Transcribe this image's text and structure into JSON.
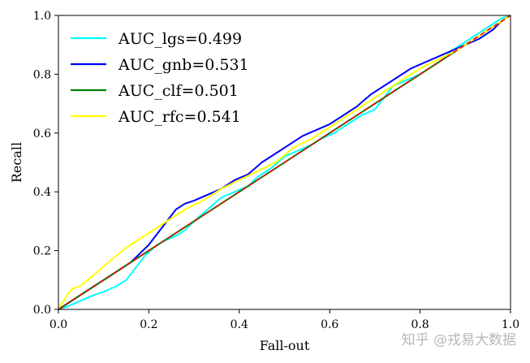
{
  "chart_data": {
    "type": "line",
    "title": "",
    "xlabel": "Fall-out",
    "ylabel": "Recall",
    "xlim": [
      0,
      1
    ],
    "ylim": [
      0,
      1
    ],
    "xticks": [
      "0.0",
      "0.2",
      "0.4",
      "0.6",
      "0.8",
      "1.0"
    ],
    "yticks": [
      "0.0",
      "0.2",
      "0.4",
      "0.6",
      "0.8",
      "1.0"
    ],
    "grid": false,
    "legend_position": "top-left",
    "series": [
      {
        "name": "AUC_lgs=0.499",
        "color": "#00ffff",
        "x": [
          0,
          0.02,
          0.05,
          0.08,
          0.1,
          0.13,
          0.15,
          0.17,
          0.19,
          0.21,
          0.23,
          0.26,
          0.28,
          0.3,
          0.33,
          0.36,
          0.39,
          0.42,
          0.44,
          0.47,
          0.5,
          0.53,
          0.56,
          0.58,
          0.61,
          0.64,
          0.67,
          0.7,
          0.72,
          0.74,
          0.77,
          0.8,
          0.82,
          0.85,
          0.87,
          0.9,
          0.93,
          0.96,
          0.98,
          1.0
        ],
        "y": [
          0,
          0.01,
          0.03,
          0.05,
          0.06,
          0.08,
          0.1,
          0.14,
          0.18,
          0.21,
          0.23,
          0.25,
          0.27,
          0.3,
          0.34,
          0.38,
          0.4,
          0.42,
          0.45,
          0.48,
          0.52,
          0.54,
          0.56,
          0.58,
          0.6,
          0.63,
          0.66,
          0.68,
          0.72,
          0.76,
          0.78,
          0.8,
          0.82,
          0.85,
          0.88,
          0.91,
          0.94,
          0.97,
          0.99,
          1.0
        ]
      },
      {
        "name": "AUC_gnb=0.531",
        "color": "#0000ff",
        "x": [
          0,
          0.02,
          0.04,
          0.06,
          0.08,
          0.1,
          0.12,
          0.14,
          0.16,
          0.18,
          0.2,
          0.22,
          0.24,
          0.26,
          0.28,
          0.3,
          0.33,
          0.36,
          0.39,
          0.42,
          0.45,
          0.48,
          0.51,
          0.54,
          0.57,
          0.6,
          0.63,
          0.66,
          0.69,
          0.72,
          0.75,
          0.78,
          0.81,
          0.84,
          0.87,
          0.9,
          0.93,
          0.96,
          0.98,
          1.0
        ],
        "y": [
          0,
          0.02,
          0.04,
          0.06,
          0.08,
          0.1,
          0.12,
          0.14,
          0.16,
          0.19,
          0.22,
          0.26,
          0.3,
          0.34,
          0.36,
          0.37,
          0.39,
          0.41,
          0.44,
          0.46,
          0.5,
          0.53,
          0.56,
          0.59,
          0.61,
          0.63,
          0.66,
          0.69,
          0.73,
          0.76,
          0.79,
          0.82,
          0.84,
          0.86,
          0.88,
          0.9,
          0.92,
          0.95,
          0.98,
          1.0
        ]
      },
      {
        "name": "AUC_clf=0.501",
        "color": "#008000",
        "x": [
          0,
          1.0
        ],
        "y": [
          0,
          1.0
        ]
      },
      {
        "name": "AUC_rfc=0.541",
        "color": "#ffff00",
        "x": [
          0,
          0.02,
          0.03,
          0.05,
          0.08,
          0.11,
          0.15,
          0.19,
          0.24,
          0.28,
          0.32,
          0.36,
          0.4,
          0.44,
          0.48,
          0.52,
          0.56,
          0.6,
          0.64,
          0.68,
          0.72,
          0.76,
          0.8,
          0.84,
          0.88,
          0.92,
          0.96,
          1.0
        ],
        "y": [
          0,
          0.05,
          0.07,
          0.08,
          0.12,
          0.16,
          0.21,
          0.25,
          0.3,
          0.34,
          0.37,
          0.41,
          0.44,
          0.47,
          0.5,
          0.55,
          0.58,
          0.62,
          0.66,
          0.7,
          0.74,
          0.78,
          0.82,
          0.85,
          0.88,
          0.92,
          0.96,
          1.0
        ]
      }
    ],
    "reference_line": {
      "color": "#ff0000",
      "style": "dashed",
      "x": [
        0,
        1.0
      ],
      "y": [
        0,
        1.0
      ]
    }
  },
  "watermark": {
    "text": "知乎 @戎易大数据",
    "color": "#b9b9b9"
  }
}
